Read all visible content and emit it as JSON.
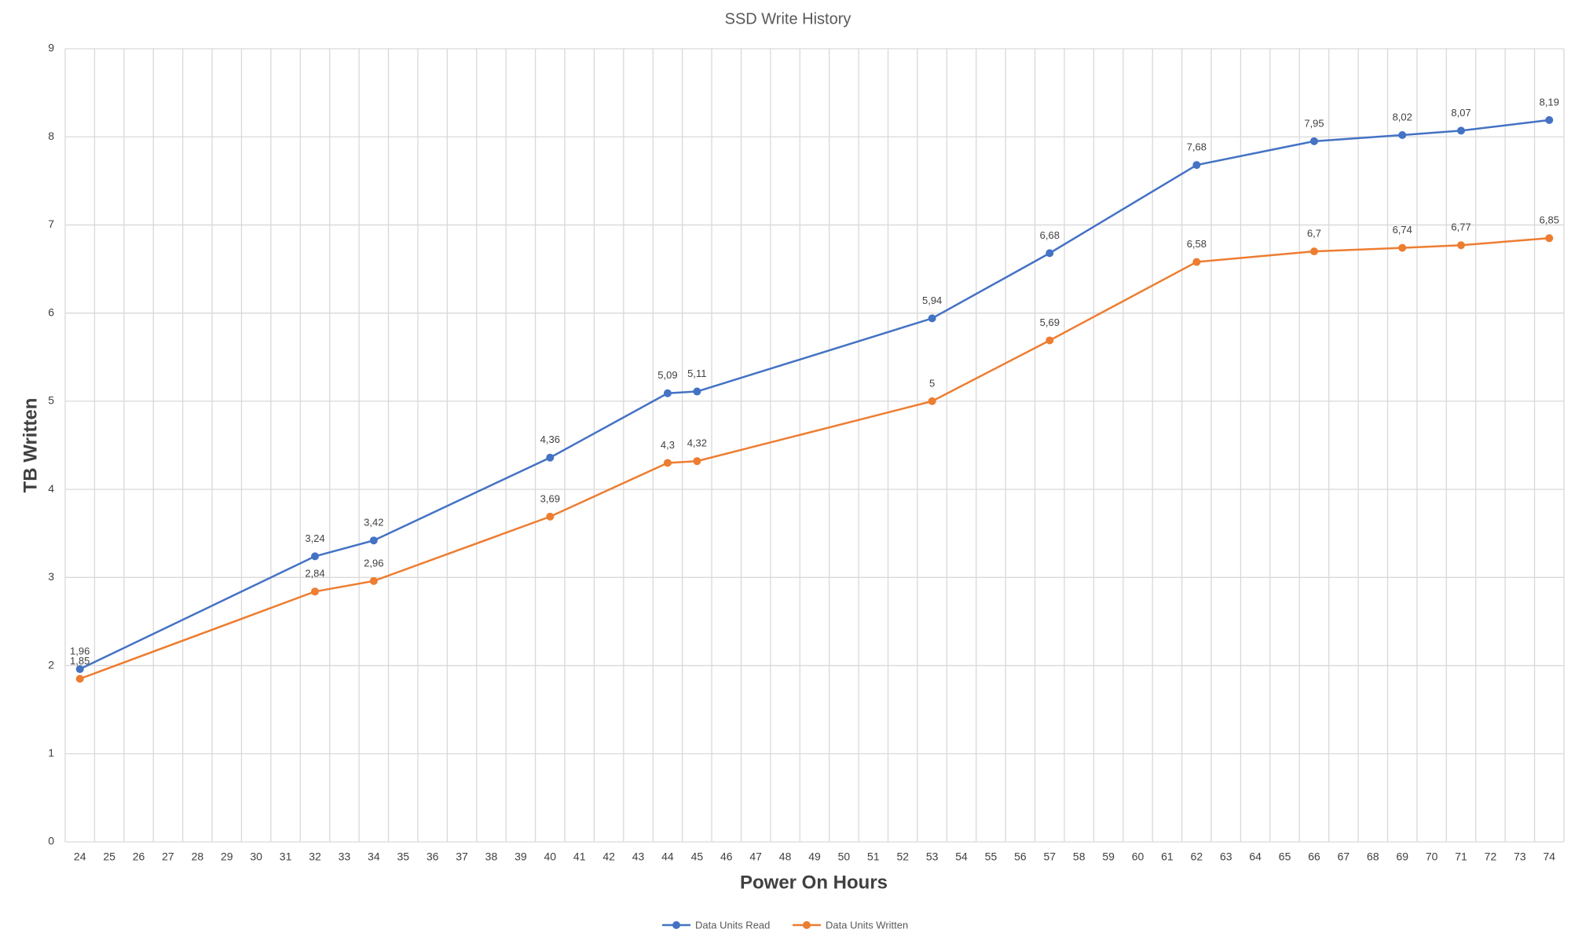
{
  "chart_data": {
    "type": "line",
    "title": "SSD Write History",
    "x_label": "Power On Hours",
    "y_label": "TB Written",
    "x": [
      24,
      32,
      34,
      40,
      44,
      45,
      53,
      57,
      62,
      66,
      69,
      71,
      74
    ],
    "xlim": [
      23.5,
      74.5
    ],
    "xticks": [
      24,
      25,
      26,
      27,
      28,
      29,
      30,
      31,
      32,
      33,
      34,
      35,
      36,
      37,
      38,
      39,
      40,
      41,
      42,
      43,
      44,
      45,
      46,
      47,
      48,
      49,
      50,
      51,
      52,
      53,
      54,
      55,
      56,
      57,
      58,
      59,
      60,
      61,
      62,
      63,
      64,
      65,
      66,
      67,
      68,
      69,
      70,
      71,
      72,
      73,
      74
    ],
    "ylim": [
      0,
      9
    ],
    "yticks": [
      0,
      1,
      2,
      3,
      4,
      5,
      6,
      7,
      8,
      9
    ],
    "grid": true,
    "series": [
      {
        "name": "Data Units Read",
        "color": "#4472c4",
        "values": [
          1.96,
          3.24,
          3.42,
          4.36,
          5.09,
          5.11,
          5.94,
          6.68,
          7.68,
          7.95,
          8.02,
          8.07,
          8.19
        ],
        "value_labels": [
          "1,96",
          "3,24",
          "3,42",
          "4,36",
          "5,09",
          "5,11",
          "5,94",
          "6,68",
          "7,68",
          "7,95",
          "8,02",
          "8,07",
          "8,19"
        ]
      },
      {
        "name": "Data Units Written",
        "color": "#ed7d31",
        "values": [
          1.85,
          2.84,
          2.96,
          3.69,
          4.3,
          4.32,
          5,
          5.69,
          6.58,
          6.7,
          6.74,
          6.77,
          6.85
        ],
        "value_labels": [
          "1,85",
          "2,84",
          "2,96",
          "3,69",
          "4,3",
          "4,32",
          "5",
          "5,69",
          "6,58",
          "6,7",
          "6,74",
          "6,77",
          "6,85"
        ]
      }
    ]
  }
}
